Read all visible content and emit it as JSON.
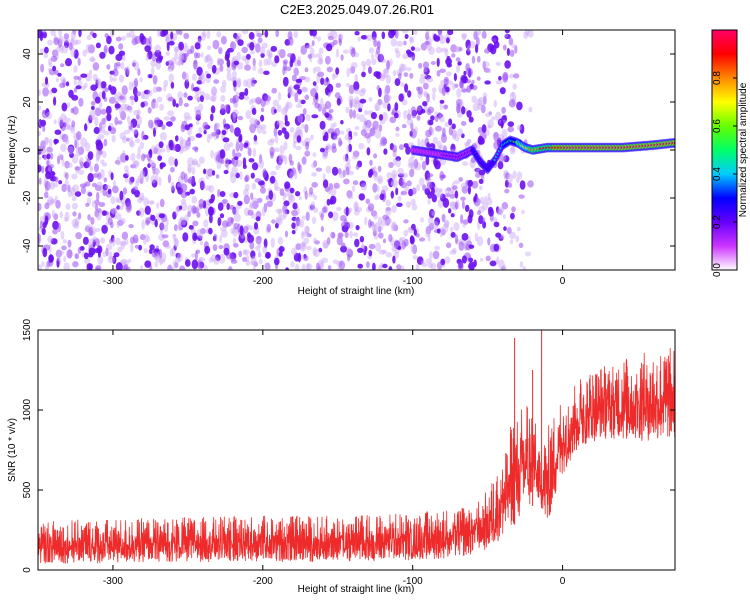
{
  "title": "C2E3.2025.049.07.26.R01",
  "colors": {
    "snr_line": "#ee2a2a",
    "spectrogram_background": "#7b2cf0",
    "colormap": [
      "#ffffff",
      "#cc33ff",
      "#6600ff",
      "#0000ff",
      "#00ccff",
      "#00ff66",
      "#66ff00",
      "#ffff00",
      "#ff8800",
      "#ff0000",
      "#ff0066"
    ]
  },
  "chart_data": [
    {
      "type": "heatmap",
      "name": "spectrogram",
      "xlabel": "Height of straight line (km)",
      "ylabel": "Frequency (Hz)",
      "xlim": [
        -350,
        75
      ],
      "ylim": [
        -50,
        50
      ],
      "x_ticks": [
        -300,
        -200,
        -100,
        0
      ],
      "y_ticks": [
        -40,
        -20,
        0,
        20,
        40
      ],
      "colorbar": {
        "label": "Normalized spectral amplitude",
        "range": [
          0,
          1
        ],
        "ticks": [
          "0.0",
          "0.2",
          "0.4",
          "0.6",
          "0.8"
        ]
      },
      "noise_region": {
        "x": [
          -350,
          -20
        ],
        "y": [
          -50,
          50
        ],
        "amplitude": [
          0.02,
          0.15
        ]
      },
      "signal_trace": {
        "x": [
          -100,
          -80,
          -70,
          -60,
          -55,
          -50,
          -45,
          -40,
          -35,
          -30,
          -25,
          -20,
          -10,
          0,
          10,
          20,
          40,
          60,
          75
        ],
        "y": [
          0,
          -2,
          -3,
          0,
          -5,
          -8,
          -4,
          2,
          4,
          3,
          1,
          0,
          1,
          1,
          1,
          1,
          1,
          2,
          3
        ],
        "amplitude": [
          0.1,
          0.15,
          0.2,
          0.25,
          0.3,
          0.3,
          0.35,
          0.4,
          0.5,
          0.6,
          0.7,
          0.8,
          0.9,
          0.95,
          0.95,
          0.95,
          0.95,
          0.95,
          0.95
        ]
      }
    },
    {
      "type": "line",
      "name": "snr",
      "xlabel": "Height of straight line (km)",
      "ylabel": "SNR (10 * v/v)",
      "xlim": [
        -350,
        75
      ],
      "ylim": [
        0,
        1500
      ],
      "x_ticks": [
        -300,
        -200,
        -100,
        0
      ],
      "y_ticks": [
        0,
        500,
        1000,
        1500
      ],
      "envelope": {
        "x": [
          -350,
          -300,
          -250,
          -200,
          -150,
          -100,
          -80,
          -60,
          -50,
          -40,
          -35,
          -30,
          -25,
          -20,
          -15,
          -10,
          -5,
          0,
          10,
          20,
          30,
          50,
          75
        ],
        "y_min": [
          40,
          40,
          50,
          50,
          50,
          60,
          70,
          90,
          130,
          200,
          260,
          300,
          350,
          400,
          420,
          250,
          450,
          600,
          750,
          800,
          820,
          800,
          820
        ],
        "y_max": [
          310,
          320,
          330,
          340,
          340,
          360,
          380,
          420,
          500,
          700,
          900,
          1000,
          1100,
          1050,
          700,
          900,
          1000,
          1100,
          1200,
          1250,
          1300,
          1350,
          1400
        ]
      },
      "spikes": [
        {
          "x": -32,
          "y": 1450
        },
        {
          "x": -14,
          "y": 1500
        },
        {
          "x": -20,
          "y": 1250
        }
      ]
    }
  ]
}
